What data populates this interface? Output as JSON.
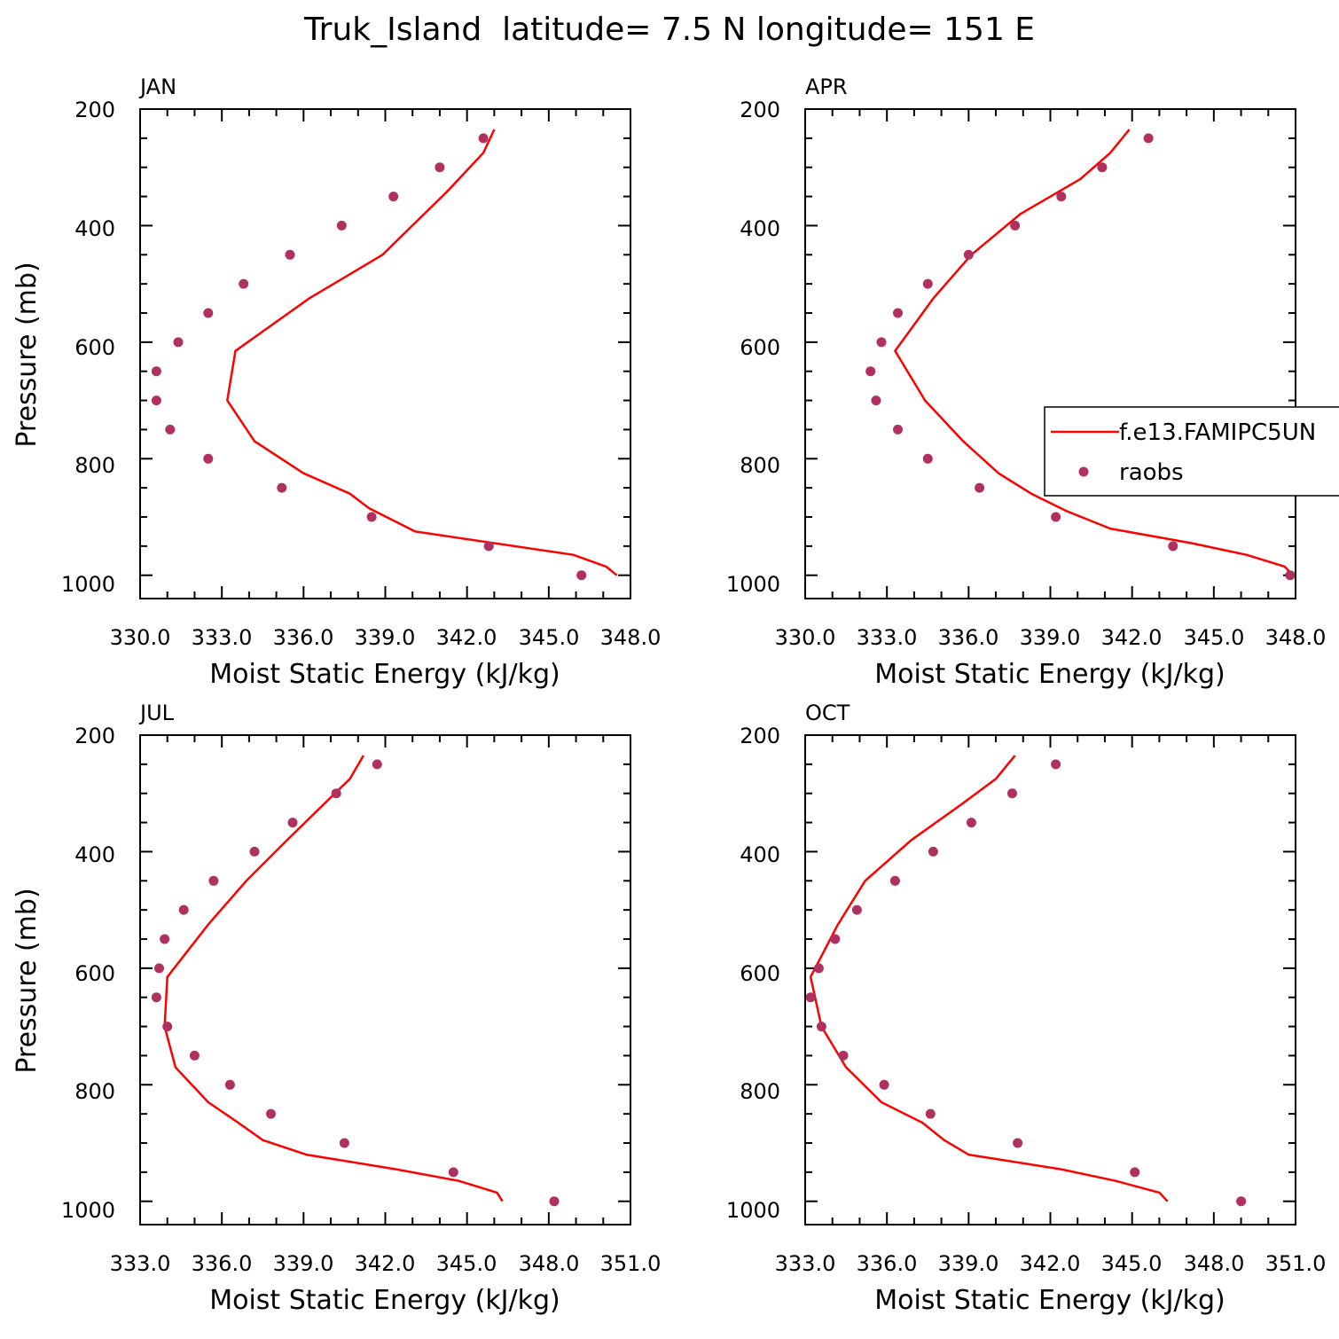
{
  "title": "Truk_Island  latitude= 7.5 N longitude= 151 E",
  "colors": {
    "model": "#ff0000",
    "obs": "#b03060"
  },
  "legend": {
    "model_label": "f.e13.FAMIPC5UN",
    "obs_label": "raobs",
    "panel": "APR"
  },
  "chart_data": [
    {
      "type": "line",
      "panel": "JAN",
      "xlabel": "Moist Static Energy (kJ/kg)",
      "ylabel": "Pressure (mb)",
      "xlim": [
        330,
        348
      ],
      "ylim": [
        1000,
        200
      ],
      "xticks": [
        "330.0",
        "333.0",
        "336.0",
        "339.0",
        "342.0",
        "345.0",
        "348.0"
      ],
      "yticks": [
        "200",
        "400",
        "600",
        "800",
        "1000"
      ],
      "series": [
        {
          "name": "f.e13.FAMIPC5UN",
          "pressure": [
            1000,
            985,
            965,
            925,
            885,
            860,
            825,
            770,
            700,
            615,
            525,
            450,
            395,
            340,
            275,
            235
          ],
          "mse": [
            347.5,
            347.1,
            345.9,
            340.1,
            338.4,
            337.7,
            336.0,
            334.2,
            333.2,
            333.5,
            336.2,
            338.9,
            340.1,
            341.3,
            342.6,
            343.0
          ]
        },
        {
          "name": "raobs",
          "pressure": [
            1000,
            950,
            900,
            850,
            800,
            750,
            700,
            650,
            600,
            550,
            500,
            450,
            400,
            350,
            300,
            250
          ],
          "mse": [
            346.2,
            342.8,
            338.5,
            335.2,
            332.5,
            331.1,
            330.6,
            330.6,
            331.4,
            332.5,
            333.8,
            335.5,
            337.4,
            339.3,
            341.0,
            342.6
          ]
        }
      ]
    },
    {
      "type": "line",
      "panel": "APR",
      "xlabel": "Moist Static Energy (kJ/kg)",
      "ylabel": "",
      "xlim": [
        330,
        348
      ],
      "ylim": [
        1000,
        200
      ],
      "xticks": [
        "330.0",
        "333.0",
        "336.0",
        "339.0",
        "342.0",
        "345.0",
        "348.0"
      ],
      "yticks": [
        "200",
        "400",
        "600",
        "800",
        "1000"
      ],
      "series": [
        {
          "name": "f.e13.FAMIPC5UN",
          "pressure": [
            1000,
            985,
            965,
            945,
            920,
            890,
            860,
            825,
            770,
            700,
            615,
            525,
            450,
            380,
            320,
            275,
            235
          ],
          "mse": [
            347.9,
            347.6,
            346.2,
            344.2,
            341.2,
            339.6,
            338.3,
            337.1,
            335.8,
            334.4,
            333.3,
            334.7,
            336.1,
            337.9,
            340.1,
            341.2,
            341.9
          ]
        },
        {
          "name": "raobs",
          "pressure": [
            1000,
            950,
            900,
            850,
            800,
            750,
            700,
            650,
            600,
            550,
            500,
            450,
            400,
            350,
            300,
            250
          ],
          "mse": [
            347.8,
            343.5,
            339.2,
            336.4,
            334.5,
            333.4,
            332.6,
            332.4,
            332.8,
            333.4,
            334.5,
            336.0,
            337.7,
            339.4,
            340.9,
            342.6
          ]
        }
      ]
    },
    {
      "type": "line",
      "panel": "JUL",
      "xlabel": "Moist Static Energy (kJ/kg)",
      "ylabel": "Pressure (mb)",
      "xlim": [
        333,
        351
      ],
      "ylim": [
        1000,
        200
      ],
      "xticks": [
        "333.0",
        "336.0",
        "339.0",
        "342.0",
        "345.0",
        "348.0",
        "351.0"
      ],
      "yticks": [
        "200",
        "400",
        "600",
        "800",
        "1000"
      ],
      "series": [
        {
          "name": "f.e13.FAMIPC5UN",
          "pressure": [
            1000,
            985,
            965,
            945,
            920,
            895,
            865,
            830,
            770,
            700,
            615,
            525,
            450,
            380,
            325,
            275,
            235
          ],
          "mse": [
            346.3,
            346.1,
            344.7,
            342.4,
            339.1,
            337.5,
            336.6,
            335.5,
            334.3,
            333.9,
            334.0,
            335.5,
            336.9,
            338.4,
            339.6,
            340.7,
            341.2
          ]
        },
        {
          "name": "raobs",
          "pressure": [
            1000,
            950,
            900,
            850,
            800,
            750,
            700,
            650,
            600,
            550,
            500,
            450,
            400,
            350,
            300,
            250
          ],
          "mse": [
            348.2,
            344.5,
            340.5,
            337.8,
            336.3,
            335.0,
            334.0,
            333.6,
            333.7,
            333.9,
            334.6,
            335.7,
            337.2,
            338.6,
            340.2,
            341.7
          ]
        }
      ]
    },
    {
      "type": "line",
      "panel": "OCT",
      "xlabel": "Moist Static Energy (kJ/kg)",
      "ylabel": "",
      "xlim": [
        333,
        351
      ],
      "ylim": [
        1000,
        200
      ],
      "xticks": [
        "333.0",
        "336.0",
        "339.0",
        "342.0",
        "345.0",
        "348.0",
        "351.0"
      ],
      "yticks": [
        "200",
        "400",
        "600",
        "800",
        "1000"
      ],
      "series": [
        {
          "name": "f.e13.FAMIPC5UN",
          "pressure": [
            1000,
            985,
            965,
            945,
            920,
            895,
            865,
            830,
            770,
            700,
            615,
            525,
            450,
            380,
            320,
            275,
            235
          ],
          "mse": [
            346.3,
            346.0,
            344.4,
            342.4,
            339.0,
            338.1,
            337.3,
            335.8,
            334.5,
            333.6,
            333.2,
            334.2,
            335.2,
            336.9,
            338.7,
            340.0,
            340.7
          ]
        },
        {
          "name": "raobs",
          "pressure": [
            1000,
            950,
            900,
            850,
            800,
            750,
            700,
            650,
            600,
            550,
            500,
            450,
            400,
            350,
            300,
            250
          ],
          "mse": [
            349.0,
            345.1,
            340.8,
            337.6,
            335.9,
            334.4,
            333.6,
            333.2,
            333.5,
            334.1,
            334.9,
            336.3,
            337.7,
            339.1,
            340.6,
            342.2
          ]
        }
      ]
    }
  ]
}
